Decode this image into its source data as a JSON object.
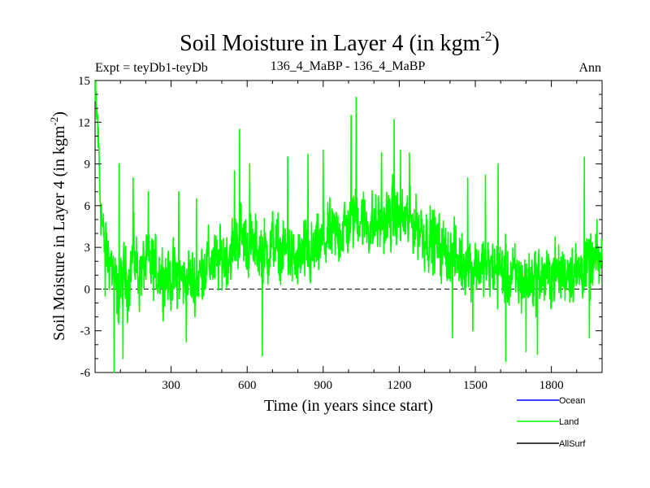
{
  "chart_data": {
    "type": "line",
    "title_main": "Soil Moisture in Layer 4 (in kgm",
    "title_sup": "-2",
    "title_close": ")",
    "subtitle_left": "Expt = teyDb1-teyDb",
    "subtitle_center": "136_4_MaBP - 136_4_MaBP",
    "subtitle_right": "Ann",
    "xlabel": "Time (in years since start)",
    "ylabel_main": "Soil Moisture in Layer 4 (in kgm",
    "ylabel_sup": "-2",
    "ylabel_close": ")",
    "xlim": [
      0,
      2000
    ],
    "ylim": [
      -6,
      15
    ],
    "xticks": [
      300,
      600,
      900,
      1200,
      1500,
      1800
    ],
    "xtick_labels": [
      "300",
      "600",
      "900",
      "1200",
      "1500",
      "1800"
    ],
    "yticks": [
      -6,
      -3,
      0,
      3,
      6,
      9,
      12,
      15
    ],
    "ytick_labels": [
      "-6",
      "-3",
      "0",
      "3",
      "6",
      "9",
      "12",
      "15"
    ],
    "zero_line": 0,
    "series": [
      {
        "name": "Ocean",
        "color": "#0000ff",
        "points": []
      },
      {
        "name": "AllSurf",
        "color": "#000000",
        "points": []
      },
      {
        "name": "Land",
        "color": "#00ff00",
        "points": [
          [
            0,
            13.5
          ],
          [
            10,
            12
          ],
          [
            20,
            7
          ],
          [
            35,
            3
          ],
          [
            50,
            2.5
          ],
          [
            70,
            1.5
          ],
          [
            90,
            -1
          ],
          [
            110,
            1
          ],
          [
            130,
            0.5
          ],
          [
            150,
            2.5
          ],
          [
            175,
            1
          ],
          [
            200,
            1.8
          ],
          [
            225,
            1.5
          ],
          [
            250,
            1.2
          ],
          [
            275,
            1
          ],
          [
            300,
            0.8
          ],
          [
            325,
            1
          ],
          [
            350,
            0.6
          ],
          [
            375,
            0.8
          ],
          [
            400,
            0.5
          ],
          [
            425,
            1.5
          ],
          [
            450,
            2
          ],
          [
            475,
            1.8
          ],
          [
            500,
            2.2
          ],
          [
            525,
            2.5
          ],
          [
            550,
            3
          ],
          [
            570,
            4
          ],
          [
            590,
            3.5
          ],
          [
            610,
            3.2
          ],
          [
            630,
            2.8
          ],
          [
            650,
            3
          ],
          [
            680,
            2.5
          ],
          [
            700,
            3.5
          ],
          [
            730,
            2.5
          ],
          [
            760,
            2.8
          ],
          [
            790,
            1.8
          ],
          [
            820,
            2.5
          ],
          [
            850,
            2.2
          ],
          [
            880,
            3
          ],
          [
            910,
            3.5
          ],
          [
            940,
            4
          ],
          [
            970,
            4.2
          ],
          [
            1000,
            4.5
          ],
          [
            1030,
            5.5
          ],
          [
            1060,
            5
          ],
          [
            1090,
            4.5
          ],
          [
            1120,
            4.8
          ],
          [
            1150,
            5
          ],
          [
            1180,
            5.2
          ],
          [
            1210,
            5
          ],
          [
            1240,
            4.8
          ],
          [
            1270,
            4.5
          ],
          [
            1300,
            4
          ],
          [
            1330,
            3.5
          ],
          [
            1360,
            3
          ],
          [
            1390,
            2.5
          ],
          [
            1420,
            2.2
          ],
          [
            1450,
            2
          ],
          [
            1480,
            1.8
          ],
          [
            1510,
            1.6
          ],
          [
            1540,
            1.5
          ],
          [
            1570,
            1.4
          ],
          [
            1600,
            1.2
          ],
          [
            1630,
            1
          ],
          [
            1660,
            0.8
          ],
          [
            1690,
            0.5
          ],
          [
            1720,
            0.8
          ],
          [
            1750,
            1
          ],
          [
            1780,
            0.8
          ],
          [
            1810,
            1.2
          ],
          [
            1840,
            1
          ],
          [
            1870,
            1.5
          ],
          [
            1900,
            1.2
          ],
          [
            1930,
            1.5
          ],
          [
            1960,
            1.8
          ],
          [
            2000,
            2
          ]
        ],
        "noise_amplitude": 3.2,
        "spikes": [
          [
            0,
            13.8
          ],
          [
            15,
            10.5
          ],
          [
            40,
            -0.5
          ],
          [
            75,
            -6
          ],
          [
            95,
            9
          ],
          [
            110,
            -5
          ],
          [
            150,
            8
          ],
          [
            210,
            7
          ],
          [
            330,
            7
          ],
          [
            360,
            -3.8
          ],
          [
            400,
            6.5
          ],
          [
            550,
            8.5
          ],
          [
            570,
            11.5
          ],
          [
            610,
            9
          ],
          [
            660,
            -4.8
          ],
          [
            760,
            9.5
          ],
          [
            840,
            9.7
          ],
          [
            900,
            10
          ],
          [
            1010,
            12.5
          ],
          [
            1030,
            13.8
          ],
          [
            1130,
            9.8
          ],
          [
            1180,
            12.2
          ],
          [
            1205,
            10
          ],
          [
            1240,
            9.8
          ],
          [
            1410,
            -3.5
          ],
          [
            1470,
            8
          ],
          [
            1490,
            -3
          ],
          [
            1540,
            8.2
          ],
          [
            1590,
            9
          ],
          [
            1620,
            -5.2
          ],
          [
            1700,
            -4.5
          ],
          [
            1745,
            -4.7
          ],
          [
            1930,
            9.5
          ],
          [
            1950,
            -3.5
          ]
        ]
      }
    ],
    "legend": [
      {
        "label": "Ocean",
        "color": "#0000ff"
      },
      {
        "label": "Land",
        "color": "#00ff00"
      },
      {
        "label": "AllSurf",
        "color": "#000000"
      }
    ]
  }
}
